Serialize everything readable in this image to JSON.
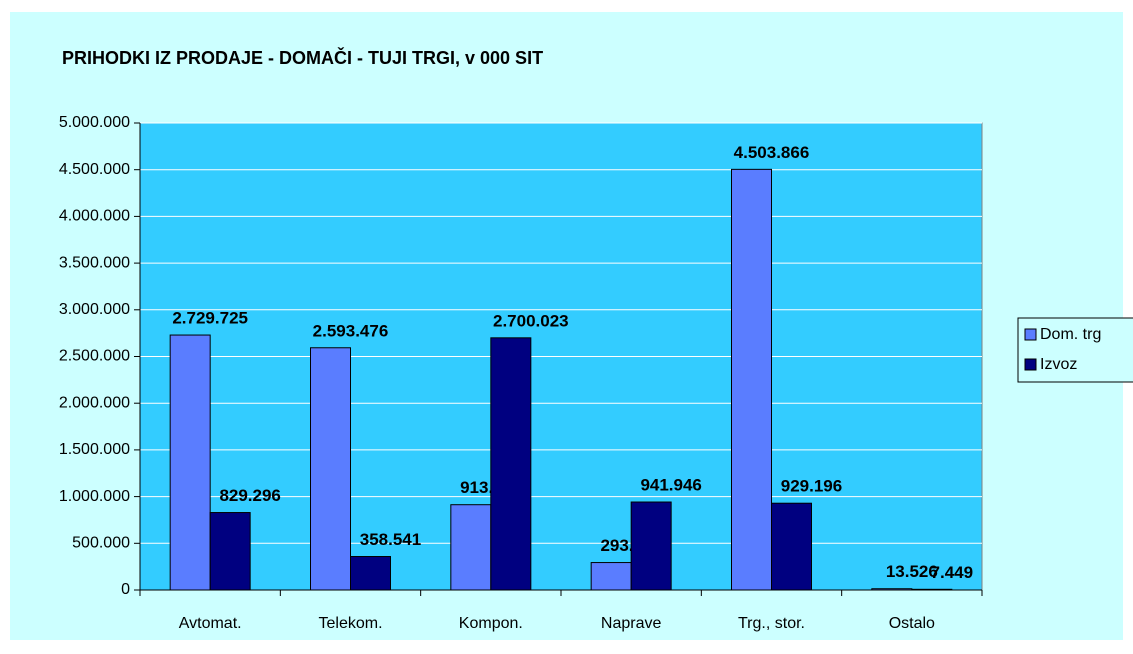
{
  "chart_data": {
    "type": "bar",
    "title": "PRIHODKI IZ PRODAJE - DOMAČI - TUJI TRGI, v 000 SIT",
    "categories": [
      "Avtomat.",
      "Telekom.",
      "Kompon.",
      "Naprave",
      "Trg., stor.",
      "Ostalo"
    ],
    "series": [
      {
        "name": "Dom. trg",
        "color": "#5a7dff",
        "values": [
          2729725,
          2593476,
          913163,
          293800,
          4503866,
          13526
        ],
        "value_labels": [
          "2.729.725",
          "2.593.476",
          "913.163",
          "293.800",
          "4.503.866",
          "13.526"
        ]
      },
      {
        "name": "Izvoz",
        "color": "#000080",
        "values": [
          829296,
          358541,
          2700023,
          941946,
          929196,
          7449
        ],
        "value_labels": [
          "829.296",
          "358.541",
          "2.700.023",
          "941.946",
          "929.196",
          "7.449"
        ]
      }
    ],
    "ylim": [
      0,
      5000000
    ],
    "yticks": [
      {
        "value": 0,
        "label": "0"
      },
      {
        "value": 500000,
        "label": "500.000"
      },
      {
        "value": 1000000,
        "label": "1.000.000"
      },
      {
        "value": 1500000,
        "label": "1.500.000"
      },
      {
        "value": 2000000,
        "label": "2.000.000"
      },
      {
        "value": 2500000,
        "label": "2.500.000"
      },
      {
        "value": 3000000,
        "label": "3.000.000"
      },
      {
        "value": 3500000,
        "label": "3.500.000"
      },
      {
        "value": 4000000,
        "label": "4.000.000"
      },
      {
        "value": 4500000,
        "label": "4.500.000"
      },
      {
        "value": 5000000,
        "label": "5.000.000"
      }
    ],
    "grid": true,
    "legend": "right"
  }
}
